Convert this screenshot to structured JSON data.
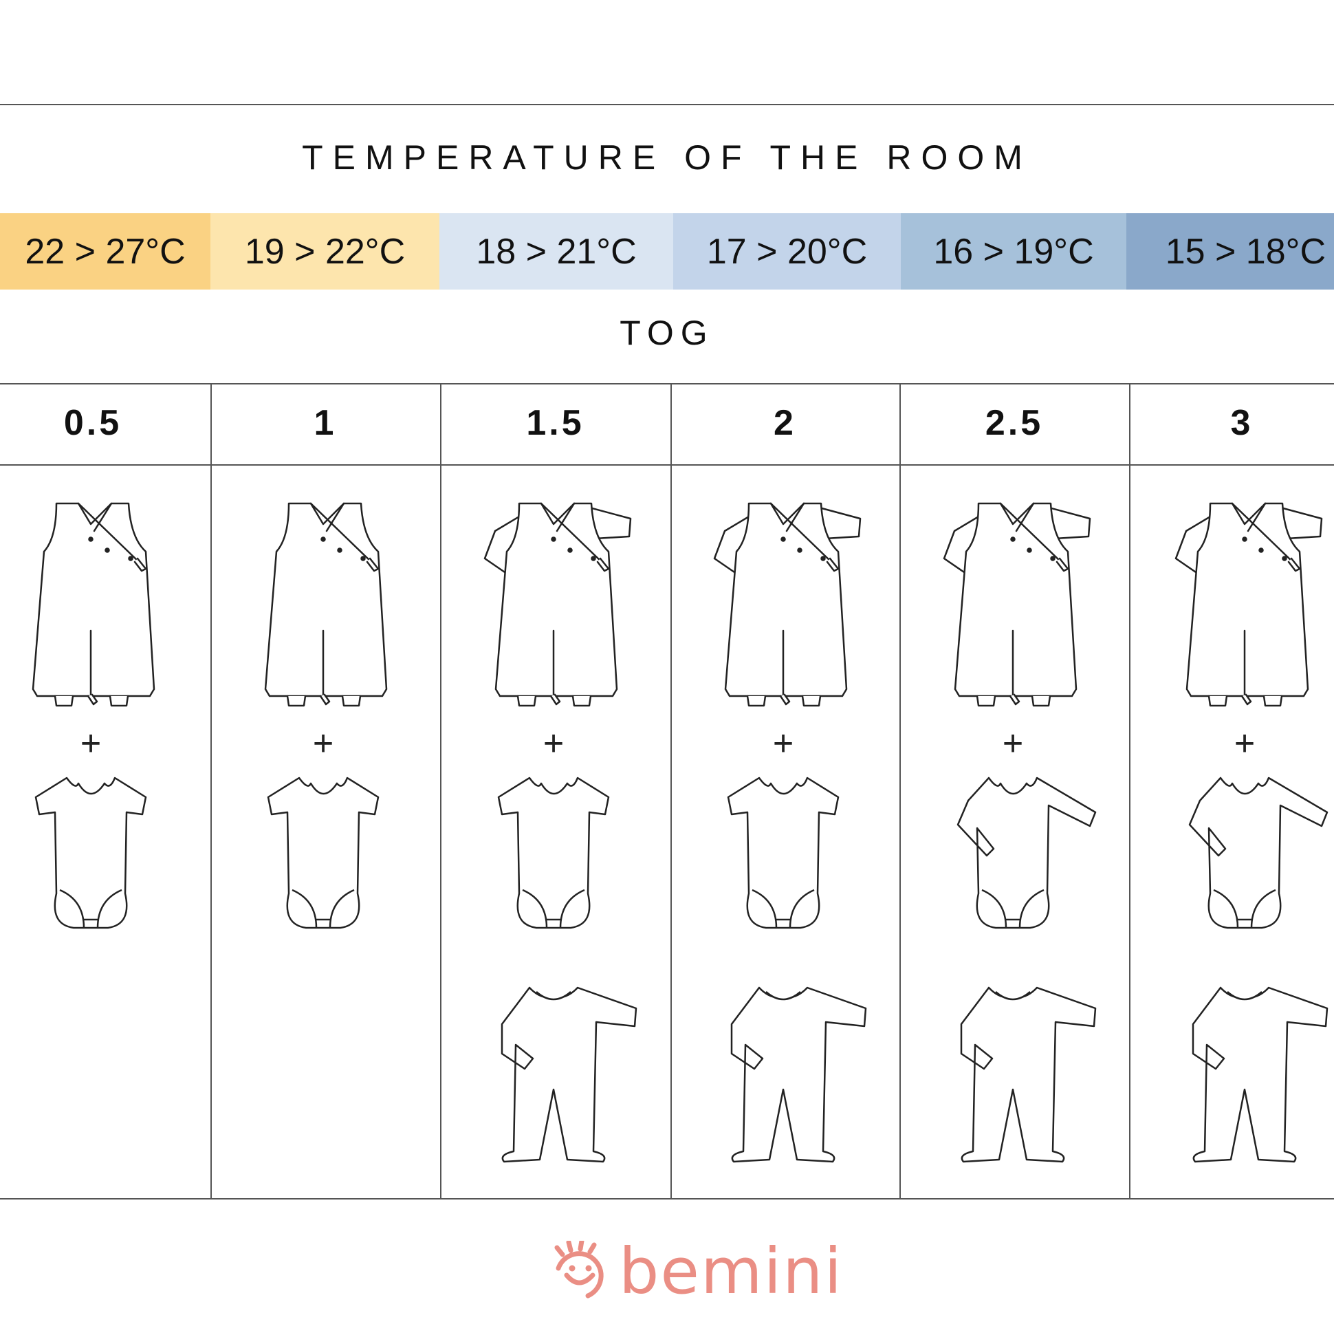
{
  "title": "TEMPERATURE OF THE ROOM",
  "temperature_bands": [
    {
      "label": "22 > 27°C",
      "color": "#fad283"
    },
    {
      "label": "19 > 22°C",
      "color": "#fde5ad"
    },
    {
      "label": "18 > 21°C",
      "color": "#dae5f2"
    },
    {
      "label": "17 > 20°C",
      "color": "#c3d4ea"
    },
    {
      "label": "16 > 19°C",
      "color": "#a6c1da"
    },
    {
      "label": "15 > 18°C",
      "color": "#8aa8ca"
    }
  ],
  "tog_label": "TOG",
  "tog_values": [
    "0.5",
    "1",
    "1.5",
    "2",
    "2.5",
    "3"
  ],
  "plus_sign": "+",
  "columns": [
    {
      "items": [
        "sleeveless-sleep-bag-icon",
        "short-sleeve-bodysuit-icon"
      ]
    },
    {
      "items": [
        "sleeveless-sleep-bag-icon",
        "short-sleeve-bodysuit-icon"
      ]
    },
    {
      "items": [
        "long-sleeve-sleep-bag-icon",
        "short-sleeve-bodysuit-icon",
        "footed-sleepsuit-icon"
      ]
    },
    {
      "items": [
        "long-sleeve-sleep-bag-icon",
        "short-sleeve-bodysuit-icon",
        "footed-sleepsuit-icon"
      ]
    },
    {
      "items": [
        "long-sleeve-sleep-bag-icon",
        "long-sleeve-bodysuit-icon",
        "footed-sleepsuit-icon"
      ]
    },
    {
      "items": [
        "long-sleeve-sleep-bag-icon",
        "long-sleeve-bodysuit-icon",
        "footed-sleepsuit-icon"
      ]
    }
  ],
  "logo": {
    "text": "bemini",
    "color": "#ea8e84"
  }
}
